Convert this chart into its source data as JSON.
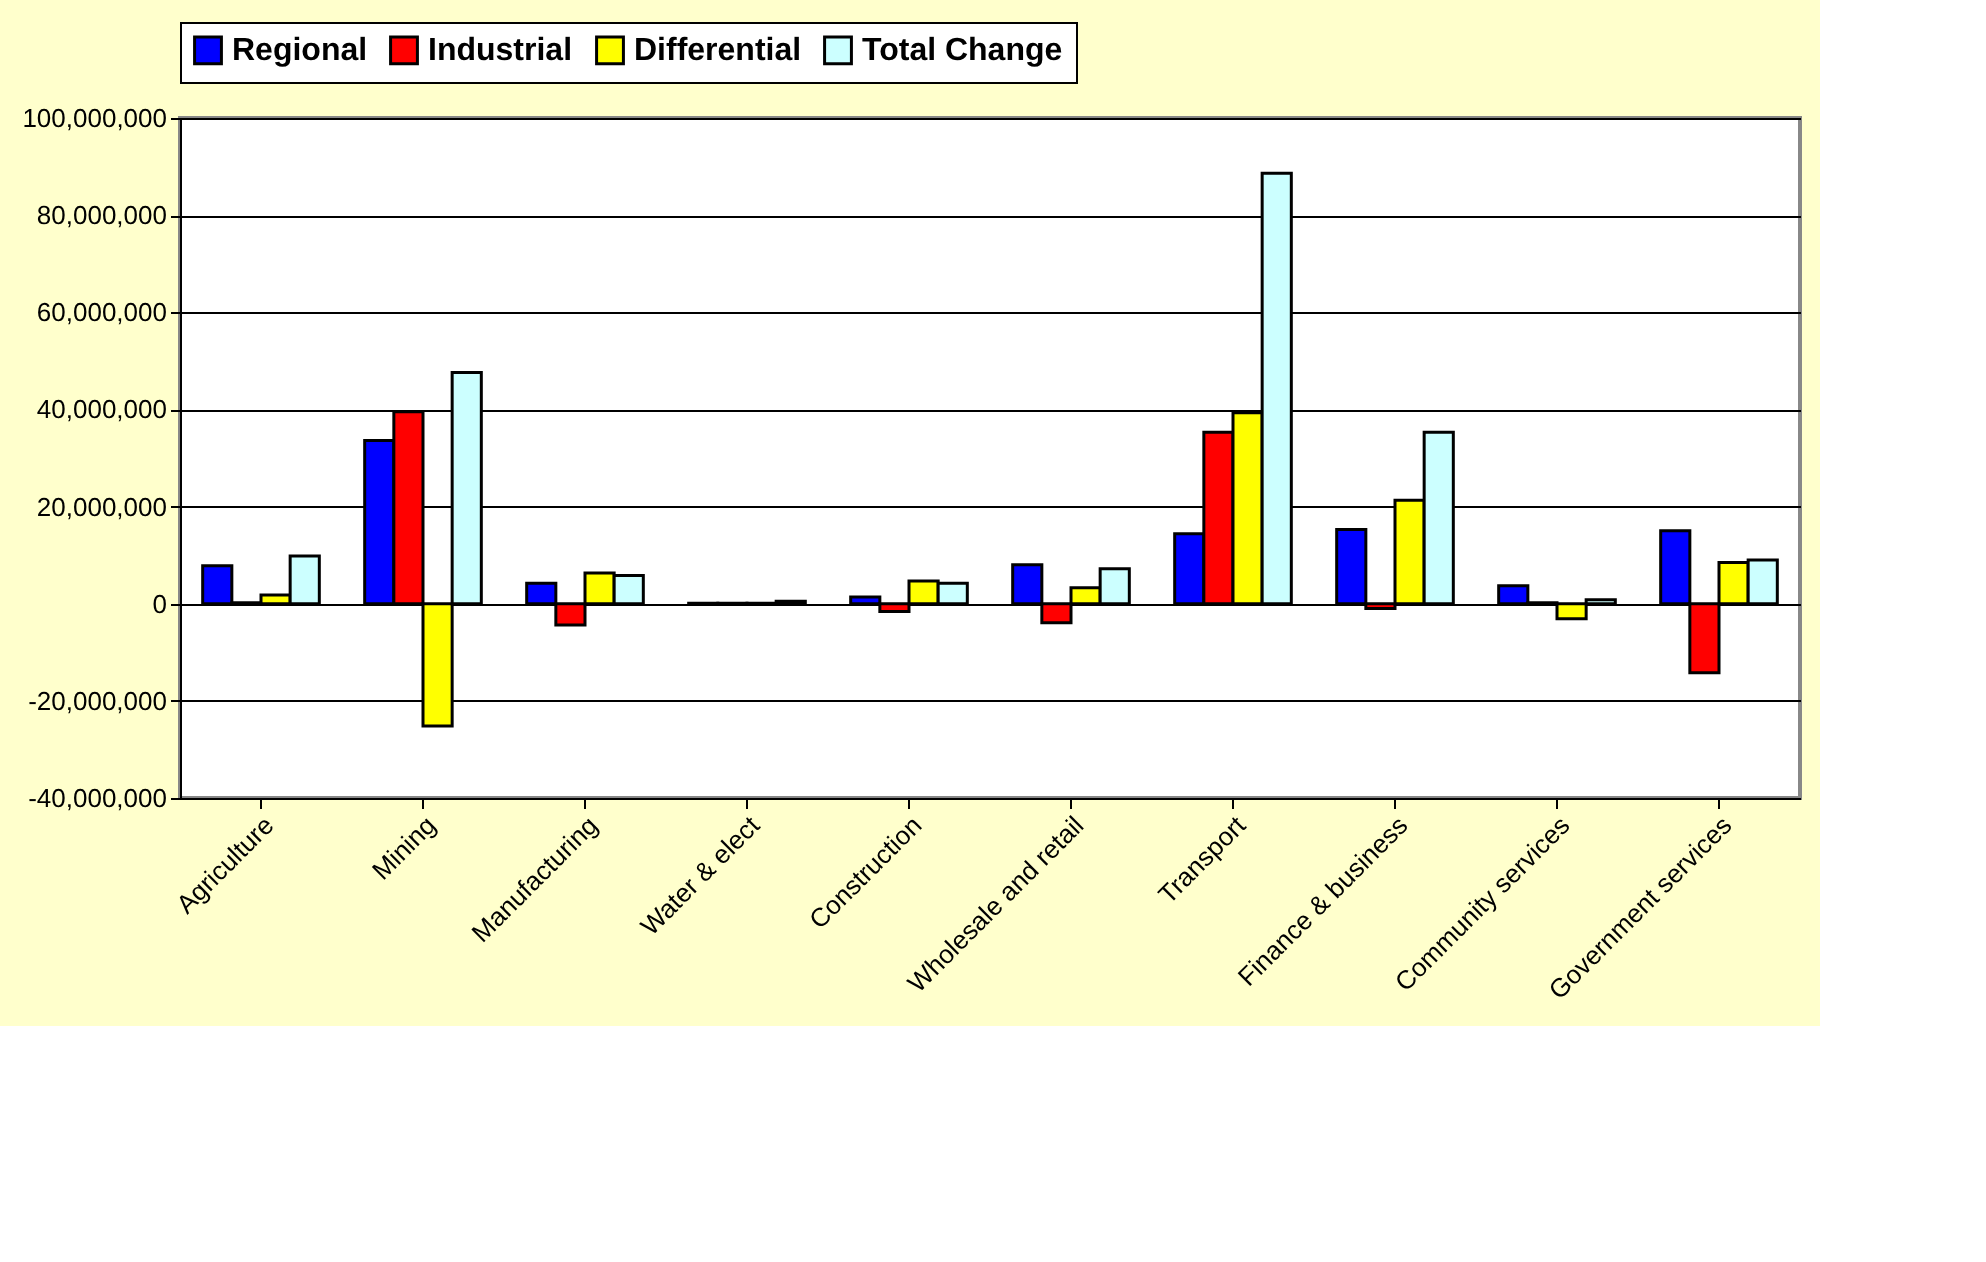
{
  "chart_data": {
    "type": "bar",
    "categories": [
      "Agriculture",
      "Mining",
      "Manufacturing",
      "Water & elect",
      "Construction",
      "Wholesale and retail",
      "Transport",
      "Finance & business",
      "Community services",
      "Government services"
    ],
    "series": [
      {
        "name": "Regional",
        "color": "#0000ff",
        "values": [
          7800000,
          33600000,
          4200000,
          100000,
          1400000,
          8000000,
          14400000,
          15300000,
          3700000,
          15000000
        ]
      },
      {
        "name": "Industrial",
        "color": "#ff0000",
        "values": [
          200000,
          39500000,
          -4400000,
          100000,
          -1600000,
          -3900000,
          35300000,
          -1000000,
          200000,
          -14200000
        ]
      },
      {
        "name": "Differential",
        "color": "#ffff00",
        "values": [
          1800000,
          -25200000,
          6300000,
          100000,
          4700000,
          3300000,
          39300000,
          21300000,
          -3100000,
          8500000
        ]
      },
      {
        "name": "Total Change",
        "color": "#ccffff",
        "values": [
          9800000,
          47600000,
          5800000,
          500000,
          4200000,
          7200000,
          88600000,
          35300000,
          800000,
          9000000
        ]
      }
    ],
    "ylim": [
      -40000000,
      100000000
    ],
    "yticks": [
      {
        "value": -40000000,
        "label": "-40,000,000"
      },
      {
        "value": -20000000,
        "label": "-20,000,000"
      },
      0,
      {
        "value": 20000000,
        "label": "20,000,000"
      },
      {
        "value": 40000000,
        "label": "40,000,000"
      },
      {
        "value": 60000000,
        "label": "60,000,000"
      },
      {
        "value": 80000000,
        "label": "80,000,000"
      },
      {
        "value": 100000000,
        "label": "100,000,000"
      }
    ],
    "grid": "y",
    "legend": "top"
  }
}
